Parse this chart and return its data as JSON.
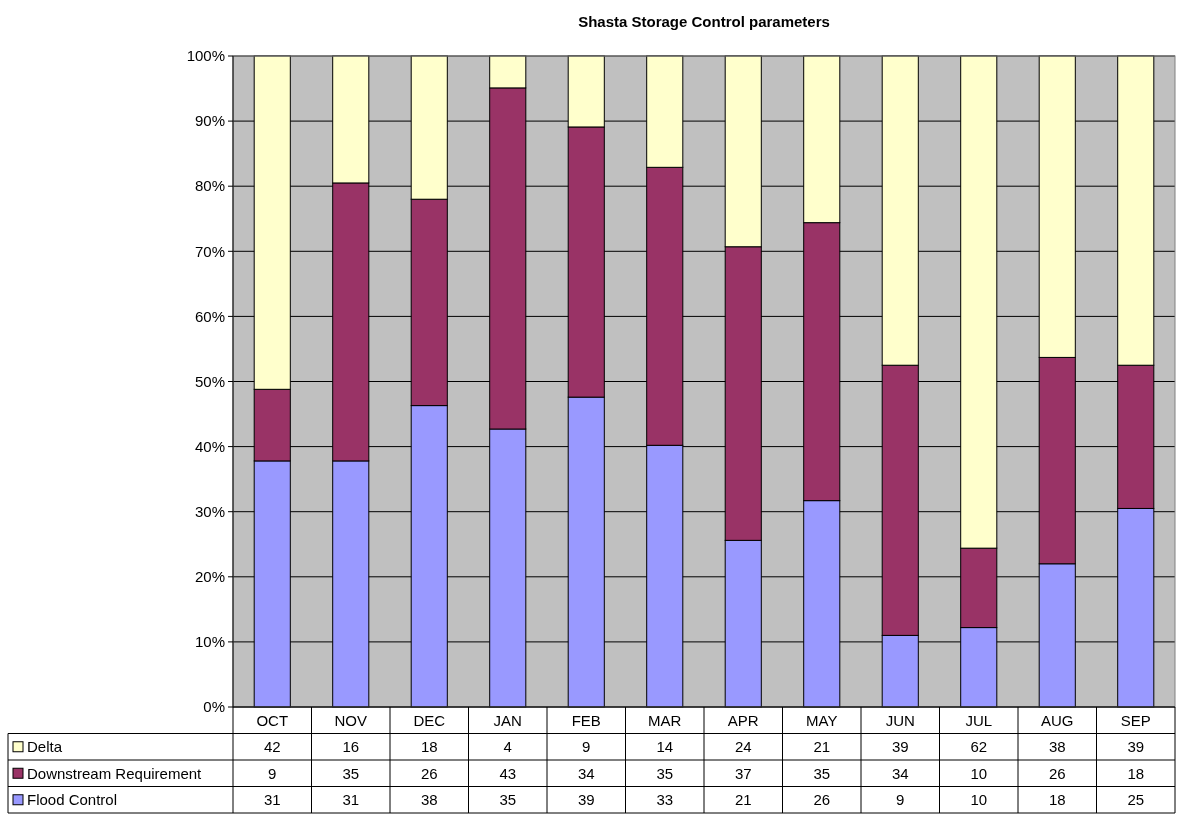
{
  "chart_data": [
    {
      "type": "bar",
      "title": "Shasta Storage Control parameters",
      "stacked": true,
      "grid": "y",
      "legend": "bottom",
      "categories": [
        "OCT",
        "NOV",
        "DEC",
        "JAN",
        "FEB",
        "MAR",
        "APR",
        "MAY",
        "JUN",
        "JUL",
        "AUG",
        "SEP"
      ],
      "ylim": [
        0,
        100
      ],
      "yticks": [
        {
          "value": 0,
          "label": "0%"
        },
        {
          "value": 10,
          "label": "10%"
        },
        {
          "value": 20,
          "label": "20%"
        },
        {
          "value": 30,
          "label": "30%"
        },
        {
          "value": 40,
          "label": "40%"
        },
        {
          "value": 50,
          "label": "50%"
        },
        {
          "value": 60,
          "label": "60%"
        },
        {
          "value": 70,
          "label": "70%"
        },
        {
          "value": 80,
          "label": "80%"
        },
        {
          "value": 90,
          "label": "90%"
        },
        {
          "value": 100,
          "label": "100%"
        }
      ],
      "series": [
        {
          "name": "Flood Control",
          "color": "#9999ff",
          "values": [
            37.8,
            37.8,
            46.3,
            42.7,
            47.6,
            40.2,
            25.6,
            31.7,
            11.0,
            12.2,
            22.0,
            30.5
          ]
        },
        {
          "name": "Downstream Requirement",
          "color": "#993366",
          "values": [
            11.0,
            42.7,
            31.7,
            52.4,
            41.5,
            42.7,
            45.1,
            42.7,
            41.5,
            12.2,
            31.7,
            22.0
          ]
        },
        {
          "name": "Delta",
          "color": "#ffffcc",
          "values": [
            51.2,
            19.5,
            22.0,
            4.9,
            10.9,
            17.1,
            29.3,
            25.6,
            47.5,
            75.6,
            46.3,
            47.5
          ]
        }
      ]
    },
    {
      "type": "other",
      "annotations": [
        "42",
        "16",
        "18",
        "4",
        "9",
        "14",
        "24",
        "21",
        "39",
        "62",
        "38",
        "39",
        "9",
        "35",
        "26",
        "43",
        "34",
        "35",
        "37",
        "35",
        "34",
        "10",
        "26",
        "18",
        "31",
        "31",
        "38",
        "35",
        "39",
        "33",
        "21",
        "26",
        "9",
        "10",
        "18",
        "25"
      ]
    }
  ]
}
